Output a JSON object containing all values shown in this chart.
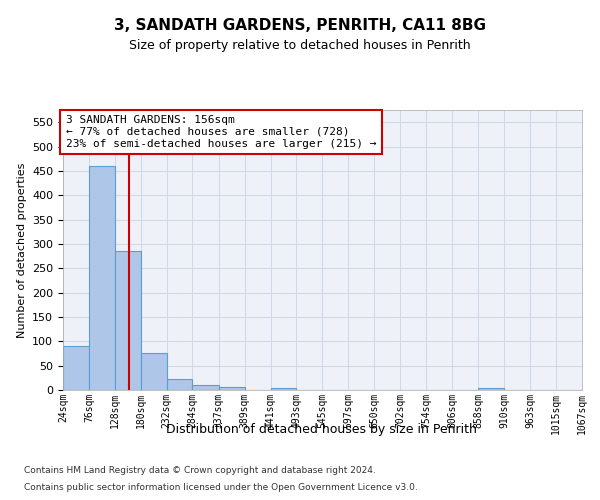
{
  "title1": "3, SANDATH GARDENS, PENRITH, CA11 8BG",
  "title2": "Size of property relative to detached houses in Penrith",
  "xlabel": "Distribution of detached houses by size in Penrith",
  "ylabel": "Number of detached properties",
  "footer1": "Contains HM Land Registry data © Crown copyright and database right 2024.",
  "footer2": "Contains public sector information licensed under the Open Government Licence v3.0.",
  "bin_labels": [
    "24sqm",
    "76sqm",
    "128sqm",
    "180sqm",
    "232sqm",
    "284sqm",
    "337sqm",
    "389sqm",
    "441sqm",
    "493sqm",
    "545sqm",
    "597sqm",
    "650sqm",
    "702sqm",
    "754sqm",
    "806sqm",
    "858sqm",
    "910sqm",
    "963sqm",
    "1015sqm",
    "1067sqm"
  ],
  "bin_edges": [
    24,
    76,
    128,
    180,
    232,
    284,
    337,
    389,
    441,
    493,
    545,
    597,
    650,
    702,
    754,
    806,
    858,
    910,
    963,
    1015,
    1067
  ],
  "bar_heights": [
    90,
    460,
    285,
    75,
    22,
    10,
    6,
    0,
    5,
    0,
    0,
    0,
    0,
    0,
    0,
    0,
    5,
    0,
    0,
    0,
    0
  ],
  "bar_color": "#aec6e8",
  "bar_edge_color": "#5a9fd4",
  "grid_color": "#d0d8e8",
  "background_color": "#eef2f8",
  "red_line_x": 156,
  "annotation_text": "3 SANDATH GARDENS: 156sqm\n← 77% of detached houses are smaller (728)\n23% of semi-detached houses are larger (215) →",
  "annotation_box_color": "#ffffff",
  "annotation_border_color": "#cc0000",
  "red_line_color": "#cc0000",
  "ylim": [
    0,
    575
  ],
  "yticks": [
    0,
    50,
    100,
    150,
    200,
    250,
    300,
    350,
    400,
    450,
    500,
    550
  ]
}
